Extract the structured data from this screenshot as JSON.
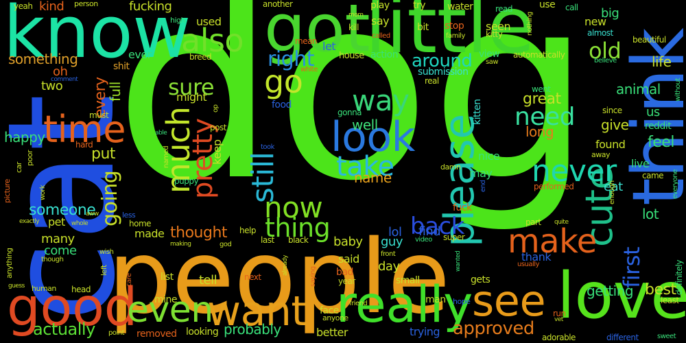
{
  "words": [
    {
      "text": "dog",
      "color": "#4ce41a"
    },
    {
      "text": "cat",
      "color": "#1f4ee0"
    },
    {
      "text": "people",
      "color": "#e89b1a"
    },
    {
      "text": "little",
      "color": "#3fd62b"
    },
    {
      "text": "know",
      "color": "#1ce3a5"
    },
    {
      "text": "think",
      "color": "#2a6ae0"
    },
    {
      "text": "love",
      "color": "#56e31c"
    },
    {
      "text": "got",
      "color": "#49d62f"
    },
    {
      "text": "good",
      "color": "#e04a22"
    },
    {
      "text": "really",
      "color": "#3fe02a"
    },
    {
      "text": "want",
      "color": "#e8a11c"
    },
    {
      "text": "see",
      "color": "#e89b1a"
    },
    {
      "text": "time",
      "color": "#e5621c"
    },
    {
      "text": "cute",
      "color": "#1fc08a"
    },
    {
      "text": "please",
      "color": "#22c7b0"
    },
    {
      "text": "look",
      "color": "#2a79e0"
    },
    {
      "text": "even",
      "color": "#7de032"
    },
    {
      "text": "make",
      "color": "#e5621c"
    },
    {
      "text": "also",
      "color": "#72e02a"
    },
    {
      "text": "much",
      "color": "#c3e62b"
    },
    {
      "text": "never",
      "color": "#1fd6b0"
    },
    {
      "text": "now",
      "color": "#83e024"
    },
    {
      "text": "way",
      "color": "#39d67a"
    },
    {
      "text": "still",
      "color": "#2ab8d6"
    },
    {
      "text": "pretty",
      "color": "#e04a22"
    },
    {
      "text": "go",
      "color": "#c3e62b"
    },
    {
      "text": "take",
      "color": "#2ab8e0"
    },
    {
      "text": "thing",
      "color": "#6ce02a"
    },
    {
      "text": "back",
      "color": "#2a4ee0"
    },
    {
      "text": "need",
      "color": "#39e0a0"
    },
    {
      "text": "going",
      "color": "#c8e02a"
    },
    {
      "text": "first",
      "color": "#2a62e0"
    },
    {
      "text": "sure",
      "color": "#8be036"
    },
    {
      "text": "right",
      "color": "#2a8fe0"
    },
    {
      "text": "around",
      "color": "#1fd6c0"
    },
    {
      "text": "old",
      "color": "#8be036"
    },
    {
      "text": "actually",
      "color": "#5ce036"
    },
    {
      "text": "approved",
      "color": "#e57b1c"
    },
    {
      "text": "well",
      "color": "#3fe07a"
    },
    {
      "text": "name",
      "color": "#e8a11c"
    },
    {
      "text": "great",
      "color": "#c8e02a"
    },
    {
      "text": "thought",
      "color": "#e8781c"
    },
    {
      "text": "someone",
      "color": "#39e0d0"
    },
    {
      "text": "every",
      "color": "#e5621c"
    },
    {
      "text": "put",
      "color": "#c8e02a"
    },
    {
      "text": "happy",
      "color": "#39e07a"
    },
    {
      "text": "something",
      "color": "#e0a02a"
    },
    {
      "text": "full",
      "color": "#9ee02a"
    },
    {
      "text": "probably",
      "color": "#39e07a"
    },
    {
      "text": "tell",
      "color": "#c8e02a"
    },
    {
      "text": "long",
      "color": "#e57b1c"
    },
    {
      "text": "give",
      "color": "#c8e02a"
    },
    {
      "text": "feel",
      "color": "#39e07a"
    },
    {
      "text": "best",
      "color": "#c8e02a"
    },
    {
      "text": "getting",
      "color": "#39e07a"
    },
    {
      "text": "lot",
      "color": "#39e07a"
    },
    {
      "text": "animal",
      "color": "#39e07a"
    },
    {
      "text": "life",
      "color": "#c8e02a"
    },
    {
      "text": "us",
      "color": "#39e07a"
    },
    {
      "text": "many",
      "color": "#c8e02a"
    },
    {
      "text": "come",
      "color": "#39e07a"
    },
    {
      "text": "baby",
      "color": "#c8e02a"
    },
    {
      "text": "guy",
      "color": "#39e0d0"
    },
    {
      "text": "said",
      "color": "#c8e02a"
    },
    {
      "text": "day",
      "color": "#c8e02a"
    },
    {
      "text": "made",
      "color": "#c8e02a"
    },
    {
      "text": "might",
      "color": "#c8e02a"
    },
    {
      "text": "keep",
      "color": "#c8e02a"
    },
    {
      "text": "find",
      "color": "#2a62e0"
    },
    {
      "text": "lol",
      "color": "#2a62e0"
    },
    {
      "text": "thank",
      "color": "#2a62e0"
    },
    {
      "text": "nice",
      "color": "#39e07a"
    },
    {
      "text": "may",
      "color": "#39e07a"
    },
    {
      "text": "eat",
      "color": "#39e0d0"
    },
    {
      "text": "live",
      "color": "#39e07a"
    },
    {
      "text": "found",
      "color": "#c8e02a"
    },
    {
      "text": "new",
      "color": "#c8e02a"
    },
    {
      "text": "big",
      "color": "#39e07a"
    },
    {
      "text": "used",
      "color": "#c8e02a"
    },
    {
      "text": "kind",
      "color": "#e5621c"
    },
    {
      "text": "fucking",
      "color": "#c8e02a"
    },
    {
      "text": "let",
      "color": "#2a62e0"
    },
    {
      "text": "say",
      "color": "#c8e02a"
    },
    {
      "text": "seen",
      "color": "#c8e02a"
    },
    {
      "text": "stop",
      "color": "#e5621c"
    },
    {
      "text": "view",
      "color": "#39e07a"
    },
    {
      "text": "submission",
      "color": "#39e0d0"
    },
    {
      "text": "action",
      "color": "#39e07a"
    },
    {
      "text": "house",
      "color": "#c8e02a"
    },
    {
      "text": "two",
      "color": "#c8e02a"
    },
    {
      "text": "oh",
      "color": "#e5621c"
    },
    {
      "text": "shit",
      "color": "#e0a02a"
    },
    {
      "text": "ever",
      "color": "#39e07a"
    },
    {
      "text": "pet",
      "color": "#c8e02a"
    },
    {
      "text": "better",
      "color": "#c8e02a"
    },
    {
      "text": "looking",
      "color": "#c8e02a"
    },
    {
      "text": "removed",
      "color": "#e5621c"
    },
    {
      "text": "trying",
      "color": "#2a62e0"
    },
    {
      "text": "gets",
      "color": "#c8e02a"
    },
    {
      "text": "small",
      "color": "#c8e02a"
    },
    {
      "text": "man",
      "color": "#c8e02a"
    },
    {
      "text": "mine",
      "color": "#c8e02a"
    },
    {
      "text": "list",
      "color": "#c8e02a"
    },
    {
      "text": "home",
      "color": "#c8e02a"
    },
    {
      "text": "next",
      "color": "#e5621c"
    },
    {
      "text": "face",
      "color": "#c8e02a"
    },
    {
      "text": "bad",
      "color": "#e5621c"
    },
    {
      "text": "year",
      "color": "#c8e02a"
    },
    {
      "text": "adorable",
      "color": "#c8e02a"
    },
    {
      "text": "different",
      "color": "#2a62e0"
    },
    {
      "text": "sweet",
      "color": "#39e07a"
    },
    {
      "text": "least",
      "color": "#c8e02a"
    },
    {
      "text": "definitely",
      "color": "#39e07a"
    },
    {
      "text": "performed",
      "color": "#e5621c"
    },
    {
      "text": "automatically",
      "color": "#c8e02a"
    },
    {
      "text": "beautiful",
      "color": "#c8e02a"
    },
    {
      "text": "reddit",
      "color": "#39e07a"
    },
    {
      "text": "since",
      "color": "#c8e02a"
    },
    {
      "text": "went",
      "color": "#39e07a"
    },
    {
      "text": "almost",
      "color": "#39e0d0"
    },
    {
      "text": "believe",
      "color": "#39e07a"
    },
    {
      "text": "food",
      "color": "#2a62e0"
    },
    {
      "text": "gonna",
      "color": "#39e07a"
    },
    {
      "text": "kitten",
      "color": "#39e0d0"
    },
    {
      "text": "kitty",
      "color": "#c8e02a"
    },
    {
      "text": "family",
      "color": "#c8e02a"
    },
    {
      "text": "bit",
      "color": "#c8e02a"
    },
    {
      "text": "water",
      "color": "#c8e02a"
    },
    {
      "text": "play",
      "color": "#c8e02a"
    },
    {
      "text": "try",
      "color": "#c8e02a"
    },
    {
      "text": "read",
      "color": "#39e07a"
    },
    {
      "text": "use",
      "color": "#c8e02a"
    },
    {
      "text": "call",
      "color": "#39e07a"
    },
    {
      "text": "nothing",
      "color": "#c8e02a"
    },
    {
      "text": "another",
      "color": "#c8e02a"
    },
    {
      "text": "kill",
      "color": "#c8e02a"
    },
    {
      "text": "mom",
      "color": "#c8e02a"
    },
    {
      "text": "called",
      "color": "#e5621c"
    },
    {
      "text": "mean",
      "color": "#e5621c"
    },
    {
      "text": "white",
      "color": "#e5621c"
    },
    {
      "text": "saw",
      "color": "#c8e02a"
    },
    {
      "text": "real",
      "color": "#c8e02a"
    },
    {
      "text": "yeah",
      "color": "#c8e02a"
    },
    {
      "text": "person",
      "color": "#c8e02a"
    },
    {
      "text": "high",
      "color": "#39e07a"
    },
    {
      "text": "breed",
      "color": "#c8e02a"
    },
    {
      "text": "comment",
      "color": "#2a62e0"
    },
    {
      "text": "must",
      "color": "#c8e02a"
    },
    {
      "text": "post",
      "color": "#c8e02a"
    },
    {
      "text": "op",
      "color": "#c8e02a"
    },
    {
      "text": "able",
      "color": "#39e07a"
    },
    {
      "text": "hard",
      "color": "#e5621c"
    },
    {
      "text": "named",
      "color": "#c8e02a"
    },
    {
      "text": "took",
      "color": "#2a62e0"
    },
    {
      "text": "puppy",
      "color": "#39e07a"
    },
    {
      "text": "damn",
      "color": "#c8e02a"
    },
    {
      "text": "fuck",
      "color": "#e5621c"
    },
    {
      "text": "end",
      "color": "#2a62e0"
    },
    {
      "text": "enough",
      "color": "#c8e02a"
    },
    {
      "text": "came",
      "color": "#c8e02a"
    },
    {
      "text": "everyone",
      "color": "#39e07a"
    },
    {
      "text": "without",
      "color": "#39e07a"
    },
    {
      "text": "away",
      "color": "#c8e02a"
    },
    {
      "text": "part",
      "color": "#c8e02a"
    },
    {
      "text": "quite",
      "color": "#c8e02a"
    },
    {
      "text": "usually",
      "color": "#e5621c"
    },
    {
      "text": "super",
      "color": "#c8e02a"
    },
    {
      "text": "video",
      "color": "#39e07a"
    },
    {
      "text": "wanted",
      "color": "#39e07a"
    },
    {
      "text": "front",
      "color": "#c8e02a"
    },
    {
      "text": "saying",
      "color": "#e5621c"
    },
    {
      "text": "hope",
      "color": "#2a62e0"
    },
    {
      "text": "friend",
      "color": "#c8e02a"
    },
    {
      "text": "anyone",
      "color": "#c8e02a"
    },
    {
      "text": "run",
      "color": "#e5621c"
    },
    {
      "text": "vet",
      "color": "#c8e02a"
    },
    {
      "text": "already",
      "color": "#c8e02a"
    },
    {
      "text": "last",
      "color": "#c8e02a"
    },
    {
      "text": "black",
      "color": "#c8e02a"
    },
    {
      "text": "god",
      "color": "#c8e02a"
    },
    {
      "text": "help",
      "color": "#c8e02a"
    },
    {
      "text": "making",
      "color": "#c8e02a"
    },
    {
      "text": "care",
      "color": "#e5621c"
    },
    {
      "text": "left",
      "color": "#c8e02a"
    },
    {
      "text": "wish",
      "color": "#c8e02a"
    },
    {
      "text": "though",
      "color": "#c8e02a"
    },
    {
      "text": "human",
      "color": "#c8e02a"
    },
    {
      "text": "head",
      "color": "#c8e02a"
    },
    {
      "text": "guess",
      "color": "#c8e02a"
    },
    {
      "text": "point",
      "color": "#c8e02a"
    },
    {
      "text": "whole",
      "color": "#c8e02a"
    },
    {
      "text": "exactly",
      "color": "#c8e02a"
    },
    {
      "text": "aww",
      "color": "#c8e02a"
    },
    {
      "text": "less",
      "color": "#2a62e0"
    },
    {
      "text": "poor",
      "color": "#c8e02a"
    },
    {
      "text": "car",
      "color": "#c8e02a"
    },
    {
      "text": "picture",
      "color": "#e5621c"
    },
    {
      "text": "anything",
      "color": "#c8e02a"
    },
    {
      "text": "work",
      "color": "#c8e02a"
    }
  ]
}
